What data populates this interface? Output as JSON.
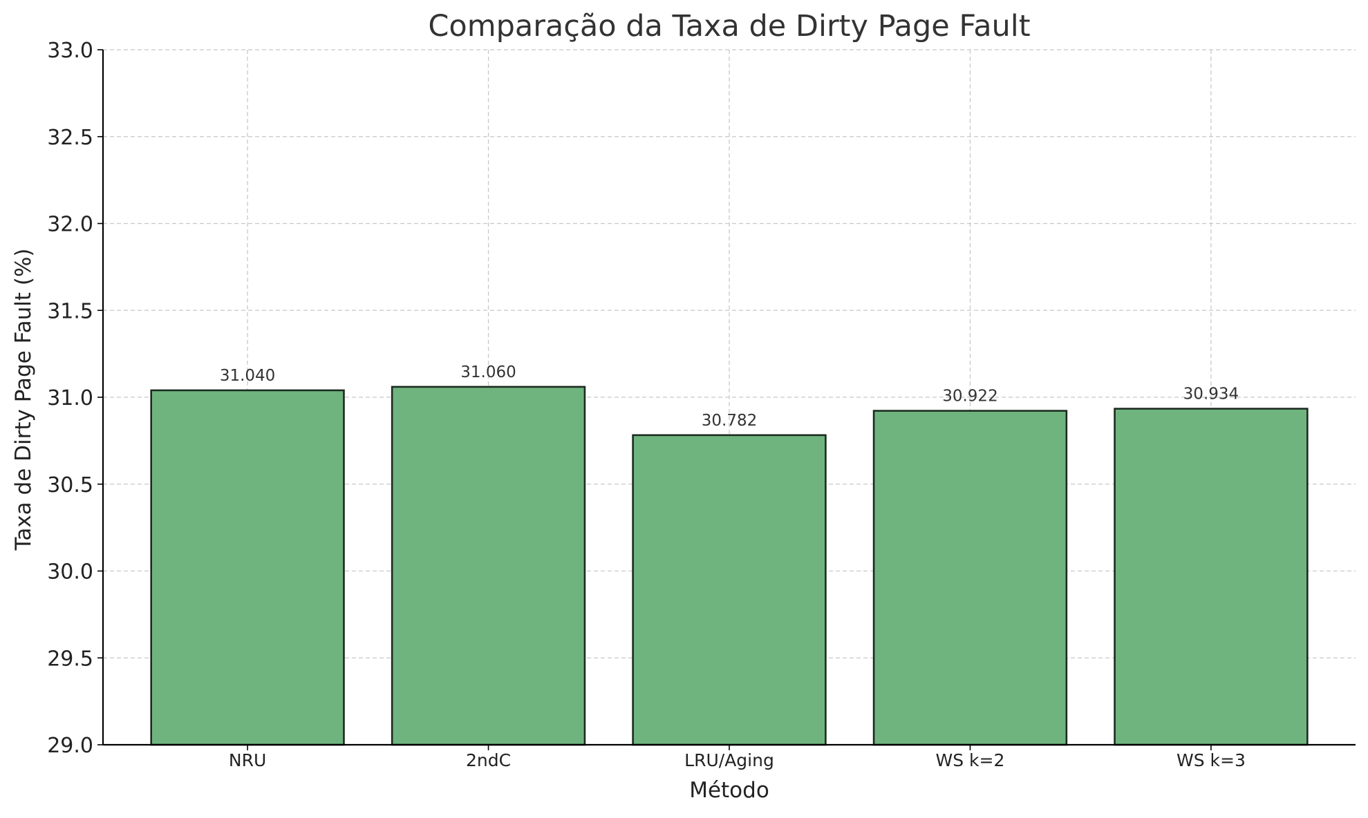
{
  "chart_data": {
    "type": "bar",
    "title": "Comparação da Taxa de Dirty Page Fault",
    "xlabel": "Método",
    "ylabel": "Taxa de Dirty Page Fault (%)",
    "categories": [
      "NRU",
      "2ndC",
      "LRU/Aging",
      "WS k=2",
      "WS k=3"
    ],
    "values": [
      31.04,
      31.06,
      30.782,
      30.922,
      30.934
    ],
    "value_labels": [
      "31.040",
      "31.060",
      "30.782",
      "30.922",
      "30.934"
    ],
    "ylim": [
      29.0,
      33.0
    ],
    "yticks": [
      29.0,
      29.5,
      30.0,
      30.5,
      31.0,
      31.5,
      32.0,
      32.5,
      33.0
    ],
    "ytick_labels": [
      "29.0",
      "29.5",
      "30.0",
      "30.5",
      "31.0",
      "31.5",
      "32.0",
      "32.5",
      "33.0"
    ],
    "grid": true,
    "colors": {
      "bar_fill": "#6fb47f",
      "bar_edge": "#1c2a1f",
      "grid": "#c8c8c8",
      "text": "#333333",
      "axis": "#000000"
    }
  }
}
